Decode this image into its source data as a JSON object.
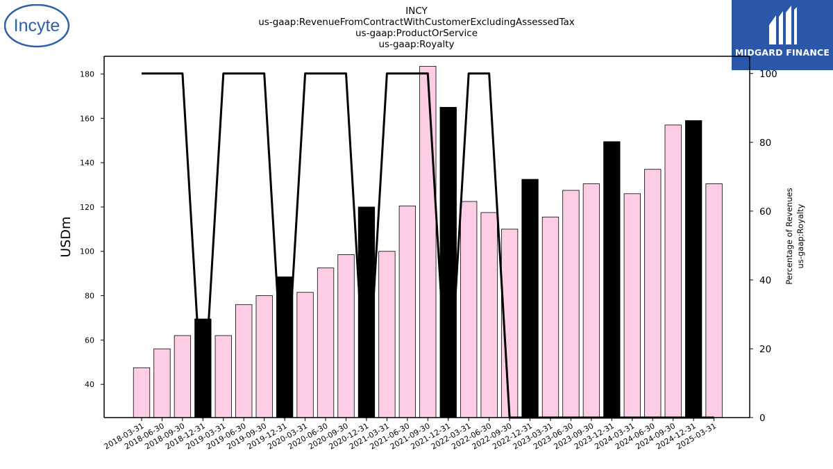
{
  "header": {
    "lines": [
      "INCY",
      "us-gaap:RevenueFromContractWithCustomerExcludingAssessedTax",
      "us-gaap:ProductOrService",
      "us-gaap:Royalty"
    ]
  },
  "logos": {
    "left": {
      "text": "Incyte",
      "color": "#2f5fa7"
    },
    "right": {
      "text": "MIDGARD FINANCE",
      "background": "#2a57a8"
    }
  },
  "chart_data": {
    "type": "bar",
    "categories": [
      "2018-03-31",
      "2018-06-30",
      "2018-09-30",
      "2018-12-31",
      "2019-03-31",
      "2019-06-30",
      "2019-09-30",
      "2019-12-31",
      "2020-03-31",
      "2020-06-30",
      "2020-09-30",
      "2020-12-31",
      "2021-03-31",
      "2021-06-30",
      "2021-09-30",
      "2021-12-31",
      "2022-03-31",
      "2022-06-30",
      "2022-09-30",
      "2022-12-31",
      "2023-03-31",
      "2023-06-30",
      "2023-09-30",
      "2023-12-31",
      "2024-03-31",
      "2024-06-30",
      "2024-09-30",
      "2024-12-31",
      "2025-03-31"
    ],
    "values": [
      47.5,
      56,
      62,
      69.5,
      62,
      76,
      80,
      88.5,
      81.5,
      92.5,
      98.5,
      120,
      100,
      120.5,
      183.5,
      165,
      122.5,
      117.5,
      110,
      132.5,
      115.5,
      127.5,
      130.5,
      149.5,
      126,
      137,
      157,
      159,
      130.5
    ],
    "bar_colors": [
      "#fccde5",
      "#fccde5",
      "#fccde5",
      "#000000",
      "#fccde5",
      "#fccde5",
      "#fccde5",
      "#000000",
      "#fccde5",
      "#fccde5",
      "#fccde5",
      "#000000",
      "#fccde5",
      "#fccde5",
      "#fccde5",
      "#000000",
      "#fccde5",
      "#fccde5",
      "#fccde5",
      "#000000",
      "#fccde5",
      "#fccde5",
      "#fccde5",
      "#000000",
      "#fccde5",
      "#fccde5",
      "#fccde5",
      "#000000",
      "#fccde5"
    ],
    "line_series": {
      "values": [
        100,
        100,
        100,
        0,
        100,
        100,
        100,
        0,
        100,
        100,
        100,
        0,
        100,
        100,
        100,
        0,
        100,
        100,
        0,
        0,
        0,
        0,
        0,
        0,
        0,
        0,
        0,
        0,
        0
      ]
    },
    "ylabel": "USDm",
    "ylim": [
      25,
      188
    ],
    "yticks": [
      40,
      60,
      80,
      100,
      120,
      140,
      160,
      180
    ],
    "y2label_lines": [
      "Percentage of Revenues",
      "us-gaap:Royalty"
    ],
    "y2lim": [
      0,
      105
    ],
    "y2ticks": [
      0,
      20,
      40,
      60,
      80,
      100
    ],
    "grid": false
  }
}
